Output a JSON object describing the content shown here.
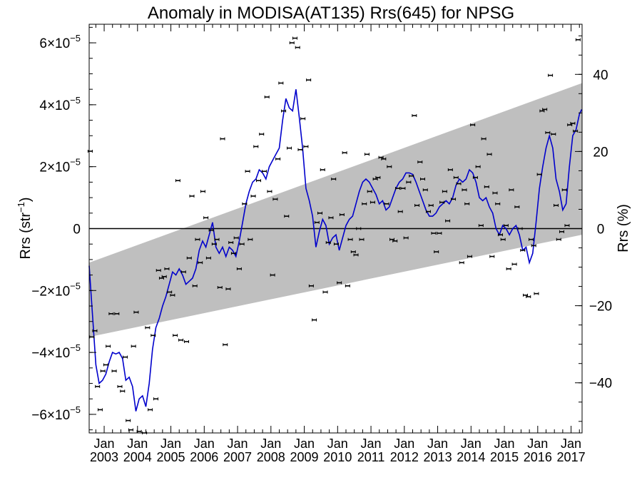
{
  "chart_data": {
    "type": "line",
    "title": "Anomaly in MODISA(AT135) Rrs(645) for NPSG",
    "ylabel_left": "Rrs (str",
    "ylabel_left_sup": "−1",
    "ylabel_left_close": ")",
    "ylabel_right": "Rrs (%)",
    "xlim": [
      2002.55,
      2017.33
    ],
    "ylim": [
      -6.6e-05,
      6.6e-05
    ],
    "y2lim": [
      -53.0,
      53.0
    ],
    "grid": false,
    "legend": "none",
    "colors": {
      "line": "#0000cc",
      "band": "#bfbfbf",
      "markers": "#000000",
      "zero_line": "#000000"
    },
    "yticks_left": [
      {
        "value": 6e-05,
        "mant": "6×10",
        "exp": "−5"
      },
      {
        "value": 4e-05,
        "mant": "4×10",
        "exp": "−5"
      },
      {
        "value": 2e-05,
        "mant": "2×10",
        "exp": "−5"
      },
      {
        "value": 0,
        "mant": "0",
        "exp": ""
      },
      {
        "value": -2e-05,
        "mant": "−2×10",
        "exp": "−5"
      },
      {
        "value": -4e-05,
        "mant": "−4×10",
        "exp": "−5"
      },
      {
        "value": -6e-05,
        "mant": "−6×10",
        "exp": "−5"
      }
    ],
    "yticks_right": [
      {
        "value": 40,
        "label": "40"
      },
      {
        "value": 20,
        "label": "20"
      },
      {
        "value": 0,
        "label": "0"
      },
      {
        "value": -20,
        "label": "−20"
      },
      {
        "value": -40,
        "label": "−40"
      }
    ],
    "xticks": [
      {
        "value": 2003.0,
        "month": "Jan",
        "year": "2003"
      },
      {
        "value": 2004.0,
        "month": "Jan",
        "year": "2004"
      },
      {
        "value": 2005.0,
        "month": "Jan",
        "year": "2005"
      },
      {
        "value": 2006.0,
        "month": "Jan",
        "year": "2006"
      },
      {
        "value": 2007.0,
        "month": "Jan",
        "year": "2007"
      },
      {
        "value": 2008.0,
        "month": "Jan",
        "year": "2008"
      },
      {
        "value": 2009.0,
        "month": "Jan",
        "year": "2009"
      },
      {
        "value": 2010.0,
        "month": "Jan",
        "year": "2010"
      },
      {
        "value": 2011.0,
        "month": "Jan",
        "year": "2011"
      },
      {
        "value": 2012.0,
        "month": "Jan",
        "year": "2012"
      },
      {
        "value": 2013.0,
        "month": "Jan",
        "year": "2013"
      },
      {
        "value": 2014.0,
        "month": "Jan",
        "year": "2014"
      },
      {
        "value": 2015.0,
        "month": "Jan",
        "year": "2015"
      },
      {
        "value": 2016.0,
        "month": "Jan",
        "year": "2016"
      },
      {
        "value": 2017.0,
        "month": "Jan",
        "year": "2017"
      }
    ],
    "band": {
      "upper": [
        [
          2002.55,
          -1.1e-05
        ],
        [
          2017.33,
          4.7e-05
        ]
      ],
      "lower": [
        [
          2002.55,
          -3.5e-05
        ],
        [
          2017.33,
          -2e-06
        ]
      ]
    },
    "smoothed": [
      [
        2002.55,
        -1.2e-05
      ],
      [
        2002.65,
        -2.8e-05
      ],
      [
        2002.75,
        -4.4e-05
      ],
      [
        2002.85,
        -5e-05
      ],
      [
        2002.95,
        -4.9e-05
      ],
      [
        2003.05,
        -4.7e-05
      ],
      [
        2003.15,
        -4.3e-05
      ],
      [
        2003.25,
        -4e-05
      ],
      [
        2003.35,
        -4.05e-05
      ],
      [
        2003.45,
        -4e-05
      ],
      [
        2003.55,
        -4.2e-05
      ],
      [
        2003.65,
        -4.9e-05
      ],
      [
        2003.75,
        -4.8e-05
      ],
      [
        2003.85,
        -5.1e-05
      ],
      [
        2003.95,
        -5.9e-05
      ],
      [
        2004.05,
        -5.5e-05
      ],
      [
        2004.15,
        -5.4e-05
      ],
      [
        2004.25,
        -5.75e-05
      ],
      [
        2004.35,
        -5e-05
      ],
      [
        2004.45,
        -3.9e-05
      ],
      [
        2004.55,
        -3.2e-05
      ],
      [
        2004.65,
        -2.9e-05
      ],
      [
        2004.75,
        -2.5e-05
      ],
      [
        2004.85,
        -2.2e-05
      ],
      [
        2004.95,
        -1.8e-05
      ],
      [
        2005.05,
        -1.4e-05
      ],
      [
        2005.15,
        -1.5e-05
      ],
      [
        2005.25,
        -1.3e-05
      ],
      [
        2005.35,
        -1.5e-05
      ],
      [
        2005.45,
        -1.8e-05
      ],
      [
        2005.55,
        -1.7e-05
      ],
      [
        2005.65,
        -1.6e-05
      ],
      [
        2005.75,
        -1.3e-05
      ],
      [
        2005.85,
        -7e-06
      ],
      [
        2005.95,
        -4e-06
      ],
      [
        2006.05,
        -6e-06
      ],
      [
        2006.15,
        -2e-06
      ],
      [
        2006.25,
        2e-06
      ],
      [
        2006.35,
        -6e-06
      ],
      [
        2006.45,
        -8e-06
      ],
      [
        2006.55,
        -6e-06
      ],
      [
        2006.65,
        -9e-06
      ],
      [
        2006.75,
        -6e-06
      ],
      [
        2006.85,
        -7e-06
      ],
      [
        2006.95,
        -9e-06
      ],
      [
        2007.05,
        -4e-06
      ],
      [
        2007.15,
        2e-06
      ],
      [
        2007.25,
        8e-06
      ],
      [
        2007.35,
        1.2e-05
      ],
      [
        2007.45,
        1.5e-05
      ],
      [
        2007.55,
        1.6e-05
      ],
      [
        2007.65,
        1.9e-05
      ],
      [
        2007.75,
        1.8e-05
      ],
      [
        2007.85,
        1.6e-05
      ],
      [
        2007.95,
        2e-05
      ],
      [
        2008.05,
        2.2e-05
      ],
      [
        2008.15,
        2.4e-05
      ],
      [
        2008.25,
        2.6e-05
      ],
      [
        2008.35,
        3.5e-05
      ],
      [
        2008.45,
        4.2e-05
      ],
      [
        2008.55,
        3.9e-05
      ],
      [
        2008.65,
        3.8e-05
      ],
      [
        2008.75,
        4.5e-05
      ],
      [
        2008.85,
        3.6e-05
      ],
      [
        2008.95,
        2.6e-05
      ],
      [
        2009.05,
        1.3e-05
      ],
      [
        2009.15,
        9e-06
      ],
      [
        2009.25,
        4e-06
      ],
      [
        2009.35,
        -6e-06
      ],
      [
        2009.45,
        -1e-06
      ],
      [
        2009.55,
        3e-06
      ],
      [
        2009.65,
        1e-06
      ],
      [
        2009.75,
        -5e-06
      ],
      [
        2009.85,
        -3e-06
      ],
      [
        2009.95,
        -2e-06
      ],
      [
        2010.05,
        -7e-06
      ],
      [
        2010.15,
        -3e-06
      ],
      [
        2010.25,
        1e-06
      ],
      [
        2010.35,
        3e-06
      ],
      [
        2010.45,
        4e-06
      ],
      [
        2010.55,
        8e-06
      ],
      [
        2010.65,
        1.2e-05
      ],
      [
        2010.75,
        1.5e-05
      ],
      [
        2010.85,
        1.6e-05
      ],
      [
        2010.95,
        1.5e-05
      ],
      [
        2011.05,
        1.3e-05
      ],
      [
        2011.15,
        1.1e-05
      ],
      [
        2011.25,
        8e-06
      ],
      [
        2011.35,
        9e-06
      ],
      [
        2011.45,
        6e-06
      ],
      [
        2011.55,
        7e-06
      ],
      [
        2011.65,
        1e-05
      ],
      [
        2011.75,
        1.3e-05
      ],
      [
        2011.85,
        1.5e-05
      ],
      [
        2011.95,
        1.6e-05
      ],
      [
        2012.05,
        1.8e-05
      ],
      [
        2012.15,
        1.8e-05
      ],
      [
        2012.25,
        1.75e-05
      ],
      [
        2012.35,
        1.5e-05
      ],
      [
        2012.45,
        1.2e-05
      ],
      [
        2012.55,
        9e-06
      ],
      [
        2012.65,
        6e-06
      ],
      [
        2012.75,
        4e-06
      ],
      [
        2012.85,
        4e-06
      ],
      [
        2012.95,
        5e-06
      ],
      [
        2013.05,
        7e-06
      ],
      [
        2013.15,
        8e-06
      ],
      [
        2013.25,
        9e-06
      ],
      [
        2013.35,
        8e-06
      ],
      [
        2013.45,
        1e-05
      ],
      [
        2013.55,
        1.4e-05
      ],
      [
        2013.65,
        1.6e-05
      ],
      [
        2013.75,
        1.5e-05
      ],
      [
        2013.85,
        1.6e-05
      ],
      [
        2013.95,
        1.9e-05
      ],
      [
        2014.05,
        1.8e-05
      ],
      [
        2014.15,
        1.5e-05
      ],
      [
        2014.25,
        1e-05
      ],
      [
        2014.35,
        9e-06
      ],
      [
        2014.45,
        1e-05
      ],
      [
        2014.55,
        7e-06
      ],
      [
        2014.65,
        5e-06
      ],
      [
        2014.75,
        0.0
      ],
      [
        2014.85,
        -2e-06
      ],
      [
        2014.95,
        1e-06
      ],
      [
        2015.05,
        0.0
      ],
      [
        2015.15,
        -2e-06
      ],
      [
        2015.25,
        0.0
      ],
      [
        2015.35,
        1e-06
      ],
      [
        2015.45,
        -2e-06
      ],
      [
        2015.55,
        -7e-06
      ],
      [
        2015.65,
        -6e-06
      ],
      [
        2015.75,
        -1.1e-05
      ],
      [
        2015.85,
        -8e-06
      ],
      [
        2015.95,
        2e-06
      ],
      [
        2016.05,
        1.3e-05
      ],
      [
        2016.15,
        2e-05
      ],
      [
        2016.25,
        2.6e-05
      ],
      [
        2016.35,
        3e-05
      ],
      [
        2016.45,
        2.6e-05
      ],
      [
        2016.55,
        1.6e-05
      ],
      [
        2016.65,
        1.2e-05
      ],
      [
        2016.75,
        6e-06
      ],
      [
        2016.85,
        8e-06
      ],
      [
        2016.95,
        2e-05
      ],
      [
        2017.05,
        3e-05
      ],
      [
        2017.15,
        3.2e-05
      ],
      [
        2017.25,
        3.7e-05
      ],
      [
        2017.32,
        3.85e-05
      ]
    ],
    "points": [
      [
        2002.58,
        2.5e-05
      ],
      [
        2002.63,
        -3.5e-05
      ],
      [
        2002.72,
        -3.3e-05
      ],
      [
        2002.8,
        -5.1e-05
      ],
      [
        2002.88,
        -5.85e-05
      ],
      [
        2002.96,
        -4.6e-05
      ],
      [
        2003.05,
        -4.4e-05
      ],
      [
        2003.12,
        -3.8e-05
      ],
      [
        2003.21,
        -2.75e-05
      ],
      [
        2003.3,
        -4.6e-05
      ],
      [
        2003.38,
        -2.75e-05
      ],
      [
        2003.47,
        -5.1e-05
      ],
      [
        2003.55,
        -5.25e-05
      ],
      [
        2003.63,
        -4.15e-05
      ],
      [
        2003.72,
        -6.2e-05
      ],
      [
        2003.8,
        -6.5e-05
      ],
      [
        2003.88,
        -3.8e-05
      ],
      [
        2003.96,
        -2.7e-05
      ],
      [
        2004.05,
        -6.55e-05
      ],
      [
        2004.13,
        -6.7e-05
      ],
      [
        2004.21,
        -6.6e-05
      ],
      [
        2004.3,
        -3.2e-05
      ],
      [
        2004.38,
        -5.85e-05
      ],
      [
        2004.47,
        -3.45e-05
      ],
      [
        2004.55,
        -5.5e-05
      ],
      [
        2004.63,
        -1.35e-05
      ],
      [
        2004.72,
        -1.6e-05
      ],
      [
        2004.8,
        -1.55e-05
      ],
      [
        2004.88,
        -1.3e-05
      ],
      [
        2004.96,
        -2.05e-05
      ],
      [
        2005.05,
        -2.15e-05
      ],
      [
        2005.13,
        -3.45e-05
      ],
      [
        2005.21,
        1.55e-05
      ],
      [
        2005.3,
        -3.6e-05
      ],
      [
        2005.38,
        -1.4e-05
      ],
      [
        2005.47,
        -3.65e-05
      ],
      [
        2005.55,
        -9.5e-06
      ],
      [
        2005.63,
        1.05e-05
      ],
      [
        2005.72,
        -1.85e-05
      ],
      [
        2005.8,
        -3.5e-06
      ],
      [
        2005.88,
        -1.1e-05
      ],
      [
        2005.96,
        1.2e-05
      ],
      [
        2006.05,
        3.5e-06
      ],
      [
        2006.13,
        -9.5e-06
      ],
      [
        2006.21,
        -5e-07
      ],
      [
        2006.3,
        -5e-06
      ],
      [
        2006.38,
        -3.5e-06
      ],
      [
        2006.47,
        -1.9e-05
      ],
      [
        2006.55,
        2.9e-05
      ],
      [
        2006.63,
        -3.75e-05
      ],
      [
        2006.72,
        -1.95e-05
      ],
      [
        2006.8,
        -4.5e-06
      ],
      [
        2006.88,
        -8e-06
      ],
      [
        2006.96,
        -3e-06
      ],
      [
        2007.05,
        -1.3e-05
      ],
      [
        2007.13,
        -5e-06
      ],
      [
        2007.21,
        8e-06
      ],
      [
        2007.3,
        1.85e-05
      ],
      [
        2007.38,
        -3.5e-06
      ],
      [
        2007.47,
        1.05e-05
      ],
      [
        2007.55,
        2.65e-05
      ],
      [
        2007.63,
        1.55e-05
      ],
      [
        2007.72,
        3.05e-05
      ],
      [
        2007.8,
        1.85e-05
      ],
      [
        2007.88,
        4.25e-05
      ],
      [
        2007.96,
        1.2e-05
      ],
      [
        2008.05,
        -1.5e-05
      ],
      [
        2008.13,
        9.5e-06
      ],
      [
        2008.21,
        2.25e-05
      ],
      [
        2008.3,
        4.7e-05
      ],
      [
        2008.38,
        3.8e-05
      ],
      [
        2008.47,
        4e-06
      ],
      [
        2008.55,
        2.6e-05
      ],
      [
        2008.63,
        6e-05
      ],
      [
        2008.72,
        6.15e-05
      ],
      [
        2008.8,
        5.85e-05
      ],
      [
        2008.88,
        2.55e-05
      ],
      [
        2008.96,
        3.55e-05
      ],
      [
        2009.05,
        2.65e-05
      ],
      [
        2009.13,
        4.8e-05
      ],
      [
        2009.21,
        -1.85e-05
      ],
      [
        2009.3,
        -2.95e-05
      ],
      [
        2009.38,
        2e-06
      ],
      [
        2009.47,
        5e-06
      ],
      [
        2009.55,
        1.9e-05
      ],
      [
        2009.63,
        -2.05e-05
      ],
      [
        2009.72,
        -4.5e-06
      ],
      [
        2009.8,
        3.5e-06
      ],
      [
        2009.88,
        1.6e-05
      ],
      [
        2009.96,
        -5e-06
      ],
      [
        2010.05,
        -1.75e-05
      ],
      [
        2010.13,
        4.5e-06
      ],
      [
        2010.21,
        2.45e-05
      ],
      [
        2010.3,
        -1.85e-05
      ],
      [
        2010.38,
        -3.5e-06
      ],
      [
        2010.47,
        -7.5e-06
      ],
      [
        2010.55,
        -8.5e-06
      ],
      [
        2010.63,
        0.0
      ],
      [
        2010.72,
        -3.5e-06
      ],
      [
        2010.8,
        8e-06
      ],
      [
        2010.88,
        2.4e-05
      ],
      [
        2010.96,
        1.2e-05
      ],
      [
        2011.05,
        8.5e-06
      ],
      [
        2011.13,
        1.6e-05
      ],
      [
        2011.21,
        1.65e-05
      ],
      [
        2011.3,
        2.3e-05
      ],
      [
        2011.38,
        2.25e-05
      ],
      [
        2011.47,
        8e-06
      ],
      [
        2011.55,
        2e-05
      ],
      [
        2011.63,
        -3.5e-06
      ],
      [
        2011.72,
        -4e-06
      ],
      [
        2011.8,
        1.3e-05
      ],
      [
        2011.88,
        5.5e-06
      ],
      [
        2011.96,
        1.3e-05
      ],
      [
        2012.05,
        -3e-06
      ],
      [
        2012.13,
        1.5e-05
      ],
      [
        2012.21,
        1.7e-05
      ],
      [
        2012.3,
        3.65e-05
      ],
      [
        2012.38,
        7.5e-06
      ],
      [
        2012.47,
        2.15e-05
      ],
      [
        2012.55,
        1.6e-05
      ],
      [
        2012.63,
        1.25e-05
      ],
      [
        2012.72,
        5.5e-06
      ],
      [
        2012.8,
        7.5e-06
      ],
      [
        2012.88,
        -1.5e-06
      ],
      [
        2012.96,
        -7.5e-06
      ],
      [
        2013.05,
        -1.5e-06
      ],
      [
        2013.13,
        8.5e-06
      ],
      [
        2013.21,
        1.2e-05
      ],
      [
        2013.3,
        2.5e-06
      ],
      [
        2013.38,
        1.9e-05
      ],
      [
        2013.47,
        9.5e-06
      ],
      [
        2013.55,
        1.65e-05
      ],
      [
        2013.63,
        1.45e-05
      ],
      [
        2013.72,
        -1.1e-05
      ],
      [
        2013.8,
        1.25e-05
      ],
      [
        2013.88,
        8e-06
      ],
      [
        2013.96,
        -9e-06
      ],
      [
        2014.05,
        3.35e-05
      ],
      [
        2014.13,
        1.65e-05
      ],
      [
        2014.21,
        2e-05
      ],
      [
        2014.3,
        1e-06
      ],
      [
        2014.38,
        2.9e-05
      ],
      [
        2014.47,
        1.35e-05
      ],
      [
        2014.55,
        2.4e-05
      ],
      [
        2014.63,
        -9e-06
      ],
      [
        2014.72,
        1.15e-05
      ],
      [
        2014.8,
        8e-06
      ],
      [
        2014.88,
        -2e-06
      ],
      [
        2014.96,
        -3.5e-06
      ],
      [
        2015.05,
        1e-06
      ],
      [
        2015.13,
        -1.3e-05
      ],
      [
        2015.21,
        1.25e-05
      ],
      [
        2015.3,
        -1.15e-05
      ],
      [
        2015.38,
        7e-06
      ],
      [
        2015.47,
        0.0
      ],
      [
        2015.55,
        -7e-06
      ],
      [
        2015.63,
        -2.15e-05
      ],
      [
        2015.72,
        -2.2e-05
      ],
      [
        2015.8,
        -3.5e-06
      ],
      [
        2015.88,
        -5.5e-06
      ],
      [
        2015.96,
        -2.1e-05
      ],
      [
        2016.05,
        1.75e-05
      ],
      [
        2016.13,
        3.8e-05
      ],
      [
        2016.21,
        3.85e-05
      ],
      [
        2016.3,
        3.1e-05
      ],
      [
        2016.38,
        4.95e-05
      ],
      [
        2016.47,
        3.05e-05
      ],
      [
        2016.55,
        7.5e-06
      ],
      [
        2016.63,
        -3.5e-06
      ],
      [
        2016.72,
        -1e-06
      ],
      [
        2016.8,
        1.25e-05
      ],
      [
        2016.88,
        1e-06
      ],
      [
        2016.96,
        3.35e-05
      ],
      [
        2017.05,
        3.4e-05
      ],
      [
        2017.13,
        3.15e-05
      ],
      [
        2017.21,
        6.1e-05
      ]
    ]
  }
}
